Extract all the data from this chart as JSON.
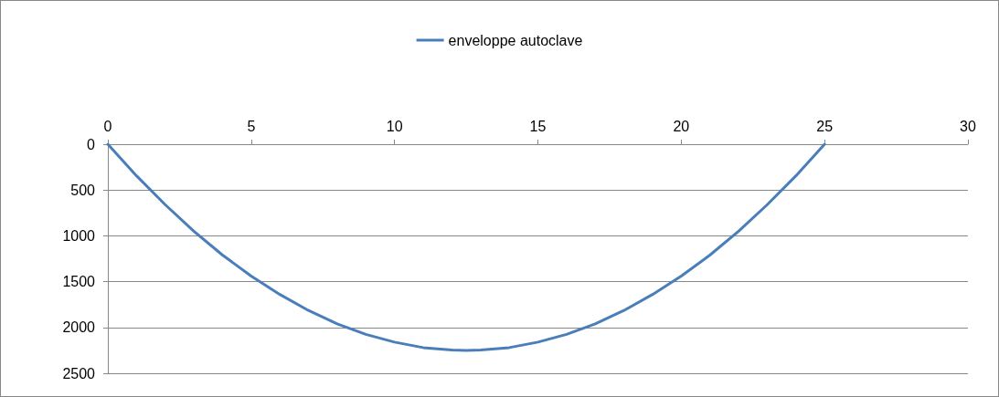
{
  "chart_data": {
    "type": "line",
    "x": [
      0,
      1,
      2,
      3,
      4,
      5,
      6,
      7,
      8,
      9,
      10,
      11,
      12,
      12.5,
      13,
      14,
      15,
      16,
      17,
      18,
      19,
      20,
      21,
      22,
      23,
      24,
      25
    ],
    "series": [
      {
        "name": "enveloppe autoclave",
        "color": "#4a7ebb",
        "values": [
          0,
          345,
          660,
          950,
          1210,
          1440,
          1640,
          1815,
          1960,
          2075,
          2160,
          2220,
          2245,
          2250,
          2245,
          2220,
          2160,
          2075,
          1960,
          1815,
          1640,
          1440,
          1210,
          950,
          660,
          345,
          0
        ]
      }
    ],
    "xlim": [
      0,
      30
    ],
    "xticks": [
      0,
      5,
      10,
      15,
      20,
      25,
      30
    ],
    "ylim": [
      2500,
      0
    ],
    "yticks": [
      0,
      500,
      1000,
      1500,
      2000,
      2500
    ],
    "grid": "y",
    "legend": "top",
    "marker": "none",
    "line_style": "solid"
  }
}
